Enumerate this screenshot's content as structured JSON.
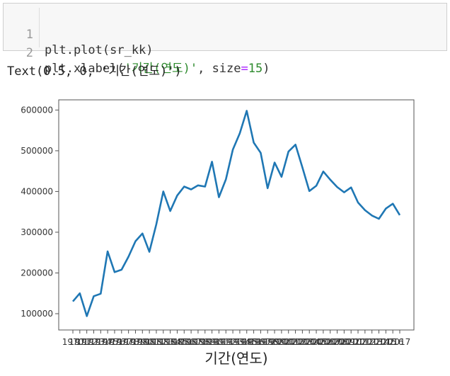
{
  "input_cell": {
    "lines": [
      {
        "number": "1",
        "code_a": "plt.plot(sr_kk)",
        "str": "",
        "code_b": "",
        "eq": "",
        "num": "",
        "end": ""
      },
      {
        "number": "2",
        "code_a": "plt.xlabel(",
        "str": "'기간(연도)'",
        "code_b": ", size",
        "eq": "=",
        "num": "15",
        "end": ")"
      }
    ]
  },
  "output_cell": {
    "text": "Text(0.5, 0, '기간(연도)')"
  },
  "chart_data": {
    "type": "line",
    "xlabel": "기간(연도)",
    "ylabel": "",
    "title": "",
    "ylim": [
      60000,
      625000
    ],
    "yticks": [
      100000,
      200000,
      300000,
      400000,
      500000,
      600000
    ],
    "ytick_labels": [
      "100000",
      "200000",
      "300000",
      "400000",
      "500000",
      "600000"
    ],
    "x": [
      "1970",
      "1971",
      "1972",
      "1973",
      "1974",
      "1975",
      "1976",
      "1977",
      "1978",
      "1979",
      "1980",
      "1981",
      "1982",
      "1983",
      "1984",
      "1985",
      "1986",
      "1987",
      "1988",
      "1989",
      "1990",
      "1991",
      "1992",
      "1993",
      "1994",
      "1995",
      "1996",
      "1997",
      "1998",
      "1999",
      "2000",
      "2001",
      "2002",
      "2003",
      "2004",
      "2005",
      "2006",
      "2007",
      "2008",
      "2009",
      "2010",
      "2011",
      "2012",
      "2013",
      "2014",
      "2015",
      "2016",
      "2017"
    ],
    "values": [
      130000,
      150000,
      94000,
      143000,
      149000,
      253000,
      202000,
      208000,
      240000,
      278000,
      297000,
      252000,
      320000,
      400000,
      352000,
      390000,
      412000,
      405000,
      415000,
      412000,
      473000,
      386000,
      430000,
      503000,
      543000,
      598000,
      520000,
      495000,
      408000,
      471000,
      436000,
      498000,
      515000,
      459000,
      401000,
      414000,
      449000,
      429000,
      411000,
      398000,
      410000,
      373000,
      354000,
      341000,
      333000,
      358000,
      370000,
      342000
    ],
    "line_color": "#1f77b4",
    "grid": false,
    "legend": "none"
  }
}
